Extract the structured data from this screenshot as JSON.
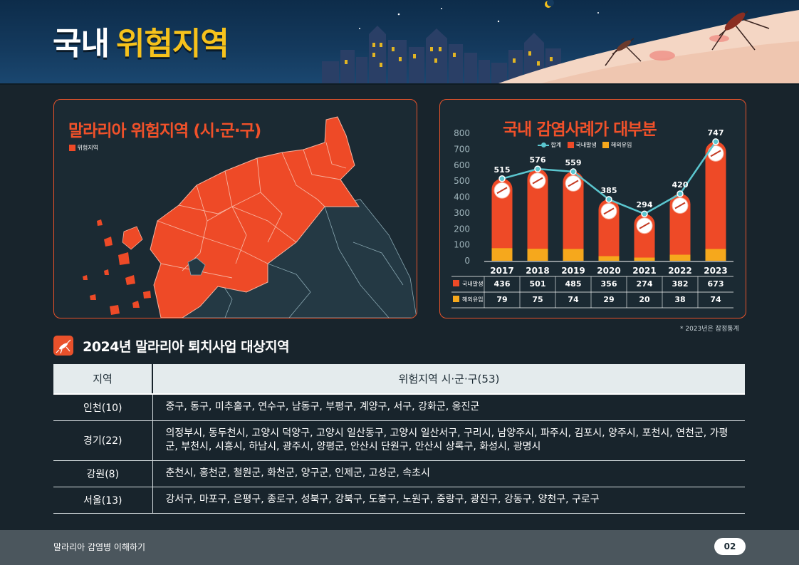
{
  "header": {
    "title_white": "국내",
    "title_yellow": "위험지역"
  },
  "map_panel": {
    "title": "말라리아 위험지역 (시·군·구)",
    "legend_label": "위험지역",
    "risk_color": "#ee4a27"
  },
  "chart_panel": {
    "title": "국내 감염사례가 대부분",
    "legend": {
      "total": "합계",
      "domestic": "국내발생",
      "overseas": "해외유입"
    },
    "row_labels": {
      "domestic": "국내발생",
      "overseas": "해외유입"
    }
  },
  "chart_data": {
    "type": "bar",
    "title": "국내 감염사례가 대부분",
    "categories": [
      "2017",
      "2018",
      "2019",
      "2020",
      "2021",
      "2022",
      "2023"
    ],
    "ylim": [
      0,
      800
    ],
    "yticks": [
      0,
      100,
      200,
      300,
      400,
      500,
      600,
      700,
      800
    ],
    "stacked": true,
    "series": [
      {
        "name": "국내발생",
        "values": [
          436,
          501,
          485,
          356,
          274,
          382,
          673
        ],
        "color": "#ee4a27"
      },
      {
        "name": "해외유입",
        "values": [
          79,
          75,
          74,
          29,
          20,
          38,
          74
        ],
        "color": "#f6a81c"
      }
    ],
    "line": {
      "name": "합계",
      "values": [
        515,
        576,
        559,
        385,
        294,
        420,
        747
      ],
      "color": "#5bc6cf"
    },
    "legend_position": "top"
  },
  "note": "* 2023년은 잠정통계",
  "section": {
    "title": "2024년 말라리아 퇴치사업 대상지역"
  },
  "table": {
    "headers": [
      "지역",
      "위험지역 시·군·구(53)"
    ],
    "rows": [
      {
        "region": "인천(10)",
        "areas": "중구, 동구, 미추홀구, 연수구, 남동구, 부평구, 계양구, 서구, 강화군, 옹진군"
      },
      {
        "region": "경기(22)",
        "areas": "의정부시, 동두천시, 고양시 덕양구, 고양시 일산동구, 고양시 일산서구, 구리시, 남양주시, 파주시, 김포시, 양주시, 포천시, 연천군, 가평군, 부천시, 시흥시, 하남시, 광주시, 양평군, 안산시 단원구, 안산시 상록구, 화성시, 광명시"
      },
      {
        "region": "강원(8)",
        "areas": "춘천시, 홍천군, 철원군, 화천군, 양구군, 인제군, 고성군, 속초시"
      },
      {
        "region": "서울(13)",
        "areas": "강서구, 마포구, 은평구, 종로구, 성북구, 강북구, 도봉구, 노원구, 중랑구, 광진구, 강동구, 양천구, 구로구"
      }
    ]
  },
  "footer": {
    "text": "말라리아 감염병 이해하기",
    "page": "02"
  }
}
